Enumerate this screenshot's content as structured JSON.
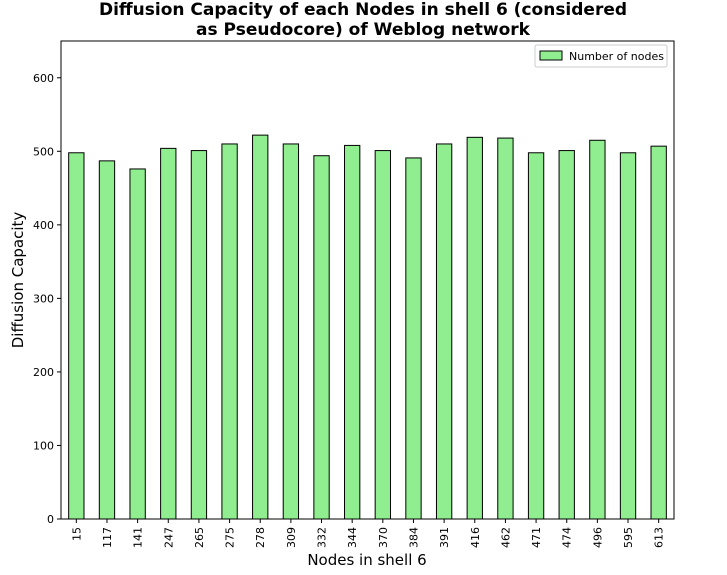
{
  "chart_data": {
    "type": "bar",
    "title_line1": "Diffusion Capacity of each Nodes in shell 6 (considered",
    "title_line2": "as Pseudocore) of Weblog network",
    "xlabel": "Nodes in shell 6",
    "ylabel": "Diffusion Capacity",
    "categories": [
      "15",
      "117",
      "141",
      "247",
      "265",
      "275",
      "278",
      "309",
      "332",
      "344",
      "370",
      "384",
      "391",
      "416",
      "462",
      "471",
      "474",
      "496",
      "595",
      "613"
    ],
    "series": [
      {
        "name": "Number of nodes",
        "values": [
          498,
          487,
          476,
          504,
          501,
          510,
          522,
          510,
          494,
          508,
          501,
          491,
          510,
          519,
          518,
          498,
          501,
          515,
          498,
          507
        ],
        "color": "#90ee90"
      }
    ],
    "ylim": [
      0,
      650
    ],
    "yticks": [
      0,
      100,
      200,
      300,
      400,
      500,
      600
    ],
    "grid": false,
    "legend_position": "top-right",
    "bar_edge_color": "#000000"
  }
}
